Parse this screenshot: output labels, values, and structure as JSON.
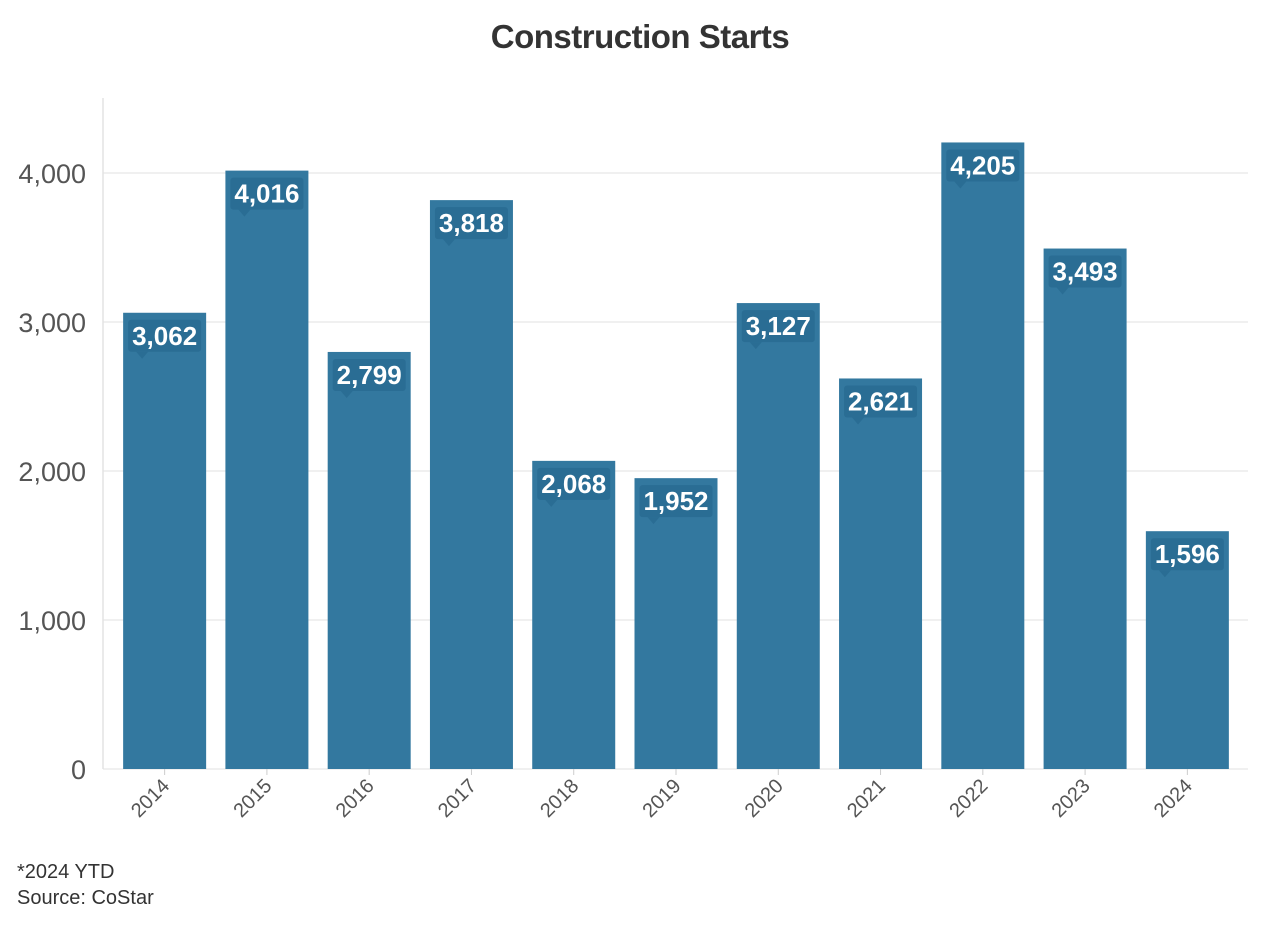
{
  "chart_data": {
    "type": "bar",
    "title": "Construction Starts",
    "categories": [
      "2014",
      "2015",
      "2016",
      "2017",
      "2018",
      "2019",
      "2020",
      "2021",
      "2022",
      "2023",
      "2024"
    ],
    "values": [
      3062,
      4016,
      2799,
      3818,
      2068,
      1952,
      3127,
      2621,
      4205,
      3493,
      1596
    ],
    "value_labels": [
      "3,062",
      "4,016",
      "2,799",
      "3,818",
      "2,068",
      "1,952",
      "3,127",
      "2,621",
      "4,205",
      "3,493",
      "1,596"
    ],
    "y_ticks": [
      0,
      1000,
      2000,
      3000,
      4000
    ],
    "y_tick_labels": [
      "0",
      "1,000",
      "2,000",
      "3,000",
      "4,000"
    ],
    "ylim": [
      0,
      4500
    ],
    "xlabel": "",
    "ylabel": "",
    "grid": true,
    "legend": "none",
    "bar_color": "#33789f",
    "label_bg_color": "#2a6d94"
  },
  "footnote": "*2024 YTD",
  "source": "Source: CoStar"
}
